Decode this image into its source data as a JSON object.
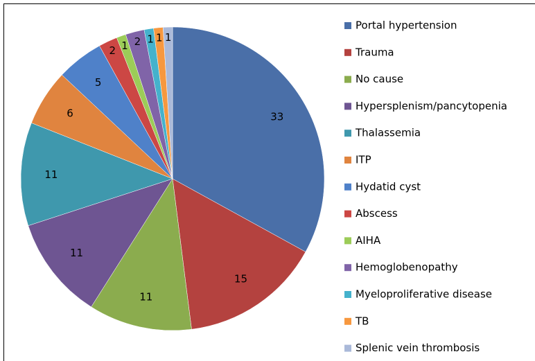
{
  "chart_data": {
    "type": "pie",
    "categories": [
      "Portal hypertension",
      "Trauma",
      "No cause",
      "Hypersplenism/pancytopenia",
      "Thalassemia",
      "ITP",
      "Hydatid cyst",
      "Abscess",
      "AIHA",
      "Hemoglobenopathy",
      "Myeloproliferative disease",
      "TB",
      "Splenic vein thrombosis"
    ],
    "values": [
      33,
      15,
      11,
      11,
      11,
      6,
      5,
      2,
      1,
      2,
      1,
      1,
      1
    ],
    "colors": [
      "#4a6fa8",
      "#b4423f",
      "#8bac4e",
      "#6e5592",
      "#3f98ad",
      "#e0843f",
      "#4f81c9",
      "#cc4744",
      "#9ccc58",
      "#8064a8",
      "#45b2cc",
      "#f7983f",
      "#aab9d9"
    ],
    "legend": "right"
  }
}
